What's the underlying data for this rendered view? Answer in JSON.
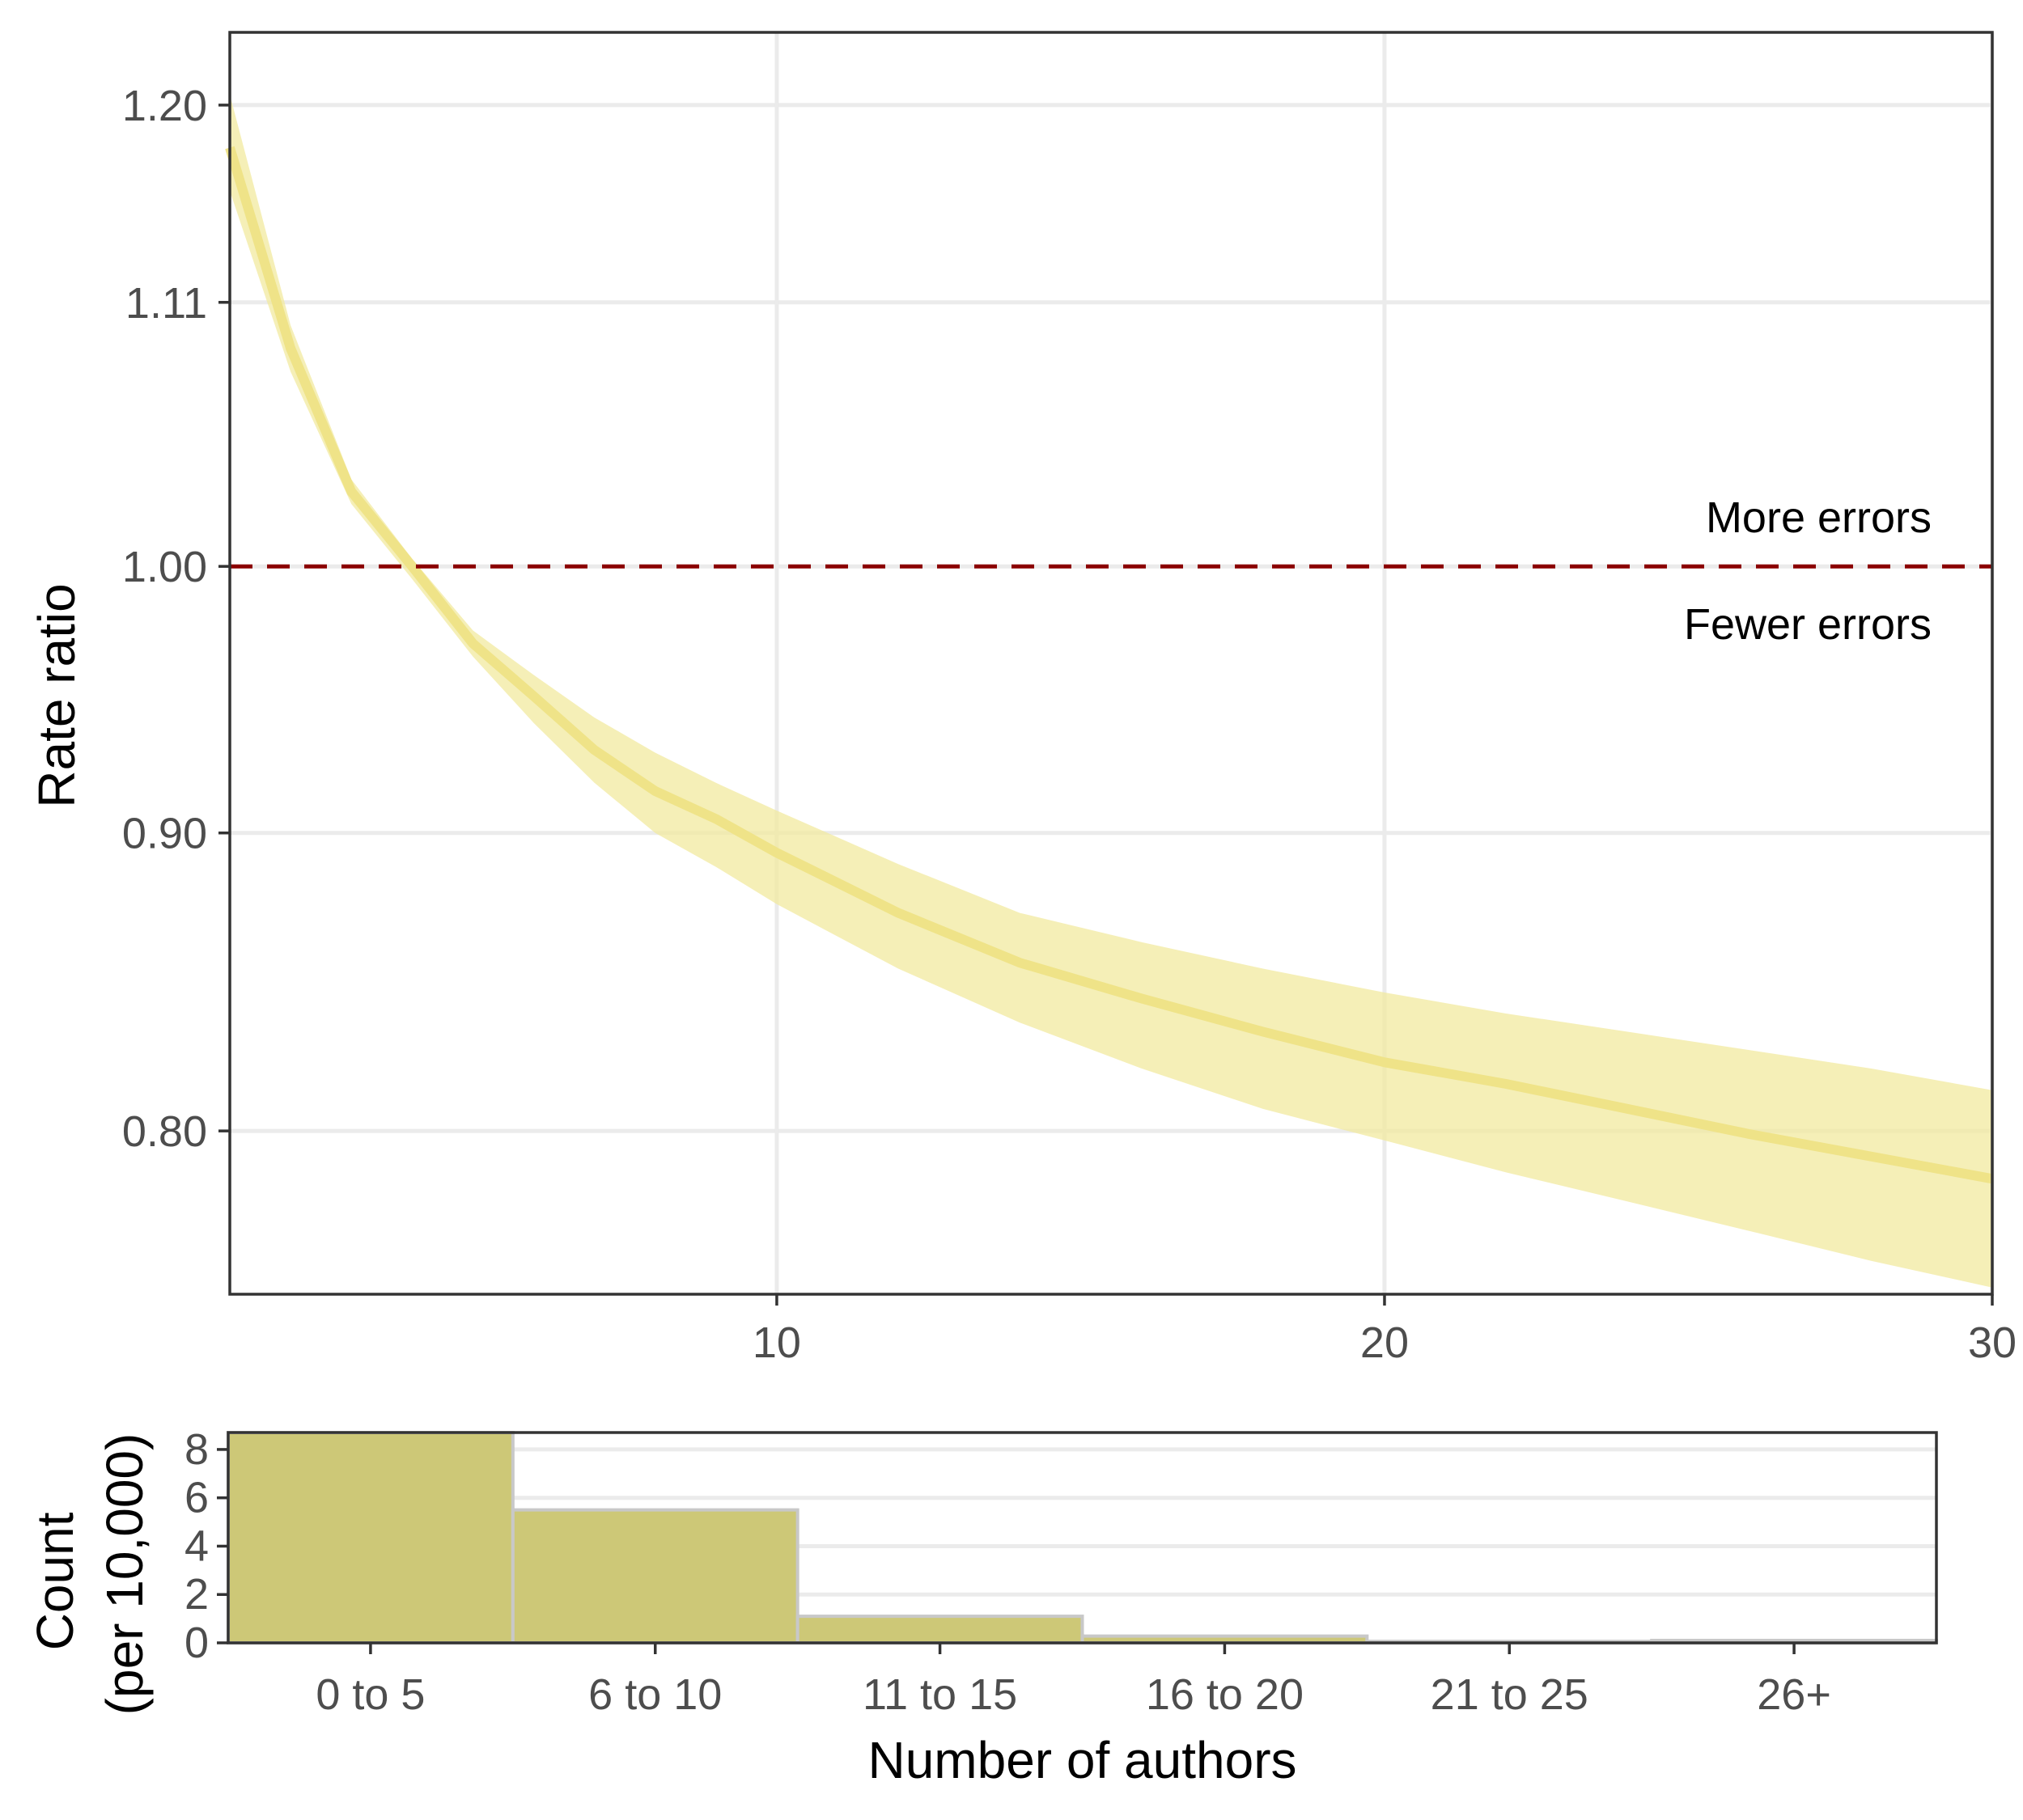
{
  "chart_data": [
    {
      "type": "line",
      "xlabel": "",
      "ylabel": "Rate ratio",
      "xlim": [
        1,
        30
      ],
      "ylim_log": true,
      "ylim": [
        0.75,
        1.235
      ],
      "x_ticks": [
        10,
        20,
        30
      ],
      "x_tick_labels": [
        "10",
        "20",
        "30"
      ],
      "y_ticks": [
        0.8,
        0.9,
        1.0,
        1.11,
        1.2
      ],
      "y_tick_labels": [
        "0.80",
        "0.90",
        "1.00",
        "1.11",
        "1.20"
      ],
      "grid": true,
      "series": [
        {
          "x": [
            1,
            2,
            3,
            4,
            5,
            6,
            7,
            8,
            9,
            10,
            12,
            14,
            16,
            18,
            20,
            22,
            24,
            26,
            28,
            30
          ],
          "values": [
            1.18,
            1.09,
            1.03,
            1.0,
            0.97,
            0.95,
            0.93,
            0.915,
            0.905,
            0.893,
            0.872,
            0.855,
            0.843,
            0.832,
            0.822,
            0.815,
            0.807,
            0.799,
            0.792,
            0.785
          ],
          "lower": [
            1.16,
            1.08,
            1.025,
            0.995,
            0.965,
            0.94,
            0.918,
            0.9,
            0.888,
            0.875,
            0.853,
            0.835,
            0.82,
            0.807,
            0.797,
            0.787,
            0.778,
            0.769,
            0.76,
            0.752
          ],
          "upper": [
            1.205,
            1.1,
            1.035,
            1.003,
            0.975,
            0.958,
            0.942,
            0.929,
            0.918,
            0.908,
            0.889,
            0.872,
            0.862,
            0.853,
            0.845,
            0.838,
            0.832,
            0.826,
            0.82,
            0.813
          ]
        }
      ],
      "reference_line": {
        "y": 1.0,
        "style": "dashed",
        "color": "#8b0000"
      },
      "annotations": [
        "More errors",
        "Fewer errors"
      ]
    },
    {
      "type": "bar",
      "categories": [
        "0 to 5",
        "6 to 10",
        "11 to 15",
        "16 to 20",
        "21 to 25",
        "26+"
      ],
      "values": [
        8.7,
        5.5,
        1.1,
        0.28,
        0.06,
        0.1
      ],
      "xlabel": "Number of authors",
      "ylabel": "Count\n(per 10,000)",
      "ylabel_lines": [
        "Count",
        "(per 10,000)"
      ],
      "ylim": [
        0,
        8.7
      ],
      "y_ticks": [
        0,
        2,
        4,
        6,
        8
      ],
      "y_tick_labels": [
        "0",
        "2",
        "4",
        "6",
        "8"
      ],
      "grid": true
    }
  ],
  "colors": {
    "ribbon": "#f2e99f",
    "line": "#efe388",
    "bar_fill": "#cdc877",
    "bar_stroke": "#c8c8c8",
    "ref_line": "#8b0000",
    "grid": "#ebebeb"
  }
}
